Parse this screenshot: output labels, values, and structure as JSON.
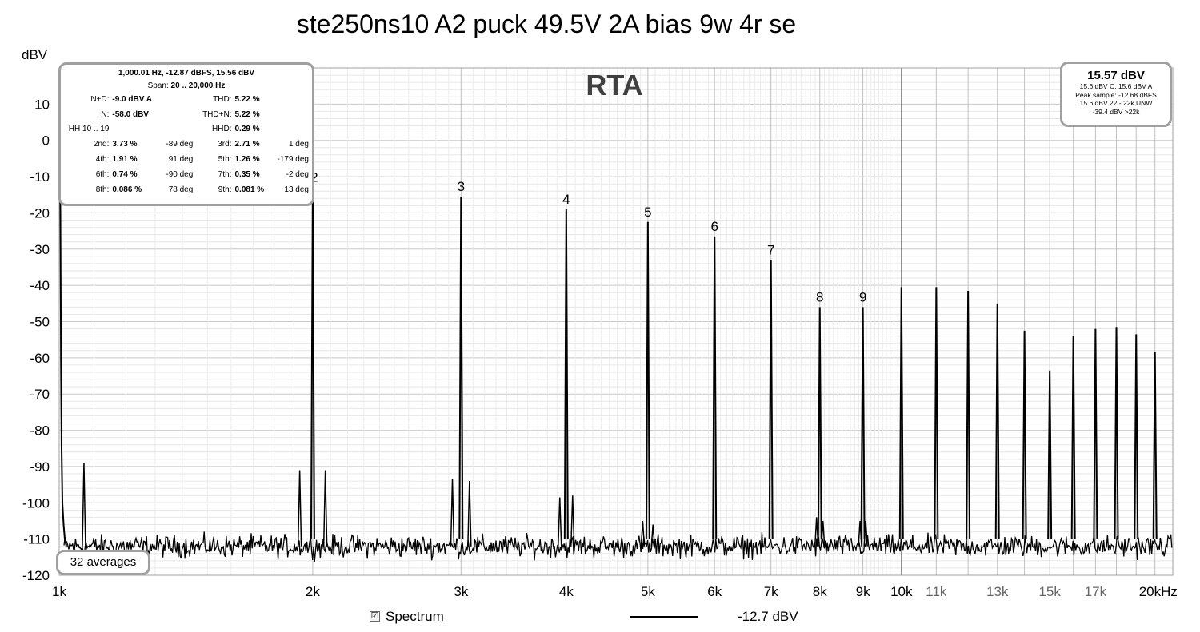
{
  "title": "ste250ns10 A2 puck 49.5V 2A bias 9w 4r se",
  "chart_data": {
    "type": "line",
    "watermark": "RTA",
    "ylabel": "dBV",
    "xscale": "log",
    "xlim": [
      1000,
      21000
    ],
    "ylim": [
      -120,
      20
    ],
    "grid": true,
    "y_ticks": [
      "10",
      "0",
      "-10",
      "-20",
      "-30",
      "-40",
      "-50",
      "-60",
      "-70",
      "-80",
      "-90",
      "-100",
      "-110",
      "-120"
    ],
    "x_ticks": [
      {
        "v": 1000,
        "label": "1k",
        "c": "#000"
      },
      {
        "v": 2000,
        "label": "2k",
        "c": "#000"
      },
      {
        "v": 3000,
        "label": "3k",
        "c": "#000"
      },
      {
        "v": 4000,
        "label": "4k",
        "c": "#000"
      },
      {
        "v": 5000,
        "label": "5k",
        "c": "#000"
      },
      {
        "v": 6000,
        "label": "6k",
        "c": "#000"
      },
      {
        "v": 7000,
        "label": "7k",
        "c": "#000"
      },
      {
        "v": 8000,
        "label": "8k",
        "c": "#000"
      },
      {
        "v": 9000,
        "label": "9k",
        "c": "#000"
      },
      {
        "v": 10000,
        "label": "10k",
        "c": "#000"
      },
      {
        "v": 11000,
        "label": "11k",
        "c": "#666"
      },
      {
        "v": 13000,
        "label": "13k",
        "c": "#666"
      },
      {
        "v": 15000,
        "label": "15k",
        "c": "#666"
      },
      {
        "v": 17000,
        "label": "17k",
        "c": "#666"
      },
      {
        "v": 20000,
        "label": "20kHz",
        "c": "#000"
      }
    ],
    "harmonics": [
      {
        "n": 2,
        "freq": 2000,
        "dBV": -13
      },
      {
        "n": 3,
        "freq": 3000,
        "dBV": -15.5
      },
      {
        "n": 4,
        "freq": 4000,
        "dBV": -19
      },
      {
        "n": 5,
        "freq": 5000,
        "dBV": -22.5
      },
      {
        "n": 6,
        "freq": 6000,
        "dBV": -26.5
      },
      {
        "n": 7,
        "freq": 7000,
        "dBV": -33
      },
      {
        "n": 8,
        "freq": 8000,
        "dBV": -46
      },
      {
        "n": 9,
        "freq": 9000,
        "dBV": -46
      },
      {
        "n": 10,
        "freq": 10000,
        "dBV": -40.5
      },
      {
        "n": 11,
        "freq": 11000,
        "dBV": -40.5
      },
      {
        "n": 12,
        "freq": 12000,
        "dBV": -41.5
      },
      {
        "n": 13,
        "freq": 13000,
        "dBV": -45
      },
      {
        "n": 14,
        "freq": 14000,
        "dBV": -52.5
      },
      {
        "n": 15,
        "freq": 15000,
        "dBV": -63.5
      },
      {
        "n": 16,
        "freq": 16000,
        "dBV": -54
      },
      {
        "n": 17,
        "freq": 17000,
        "dBV": -52
      },
      {
        "n": 18,
        "freq": 18000,
        "dBV": -51.5
      },
      {
        "n": 19,
        "freq": 19000,
        "dBV": -53.5
      },
      {
        "n": 20,
        "freq": 20000,
        "dBV": -58.5
      }
    ],
    "labeled_harmonics": [
      2,
      3,
      4,
      5,
      6,
      7,
      8,
      9
    ],
    "fundamental": {
      "freq": 1000,
      "dBV": 15.6
    },
    "sidebands": [
      {
        "freq": 1070,
        "dBV": -89
      },
      {
        "freq": 1930,
        "dBV": -91
      },
      {
        "freq": 2070,
        "dBV": -91
      },
      {
        "freq": 2930,
        "dBV": -93.5
      },
      {
        "freq": 3070,
        "dBV": -94
      },
      {
        "freq": 3930,
        "dBV": -98.5
      },
      {
        "freq": 4070,
        "dBV": -98
      },
      {
        "freq": 4930,
        "dBV": -105
      },
      {
        "freq": 5070,
        "dBV": -106
      },
      {
        "freq": 7930,
        "dBV": -104
      },
      {
        "freq": 8070,
        "dBV": -105
      },
      {
        "freq": 8930,
        "dBV": -105
      },
      {
        "freq": 9070,
        "dBV": -105
      }
    ],
    "noise_floor_dBV": -112
  },
  "stats": {
    "header": "1,000.01 Hz, -12.87 dBFS, 15.56 dBV",
    "span_label": "Span:",
    "span_value": "20 .. 20,000 Hz",
    "rows": [
      {
        "l1": "N+D:",
        "v1": "-9.0 dBV A",
        "d1": "",
        "l2": "THD:",
        "v2": "5.22 %",
        "d2": ""
      },
      {
        "l1": "N:",
        "v1": "-58.0 dBV",
        "d1": "",
        "l2": "THD+N:",
        "v2": "5.22 %",
        "d2": ""
      },
      {
        "l1": "HH 10 .. 19",
        "v1": "",
        "d1": "",
        "l2": "HHD:",
        "v2": "0.29 %",
        "d2": ""
      },
      {
        "l1": "2nd:",
        "v1": "3.73 %",
        "d1": "-89 deg",
        "l2": "3rd:",
        "v2": "2.71 %",
        "d2": "1 deg"
      },
      {
        "l1": "4th:",
        "v1": "1.91 %",
        "d1": "91 deg",
        "l2": "5th:",
        "v2": "1.26 %",
        "d2": "-179 deg"
      },
      {
        "l1": "6th:",
        "v1": "0.74 %",
        "d1": "-90 deg",
        "l2": "7th:",
        "v2": "0.35 %",
        "d2": "-2 deg"
      },
      {
        "l1": "8th:",
        "v1": "0.086 %",
        "d1": "78 deg",
        "l2": "9th:",
        "v2": "0.081 %",
        "d2": "13 deg"
      }
    ]
  },
  "level": {
    "main": "15.57 dBV",
    "lines": [
      "15.6 dBV C, 15.6 dBV A",
      "Peak sample: -12.68 dBFS",
      "15.6 dBV 22 - 22k UNW",
      "-39.4 dBV >22k"
    ]
  },
  "averages": "32 averages",
  "legend": {
    "checkbox": "☑",
    "label": "Spectrum",
    "value": "-12.7 dBV"
  }
}
